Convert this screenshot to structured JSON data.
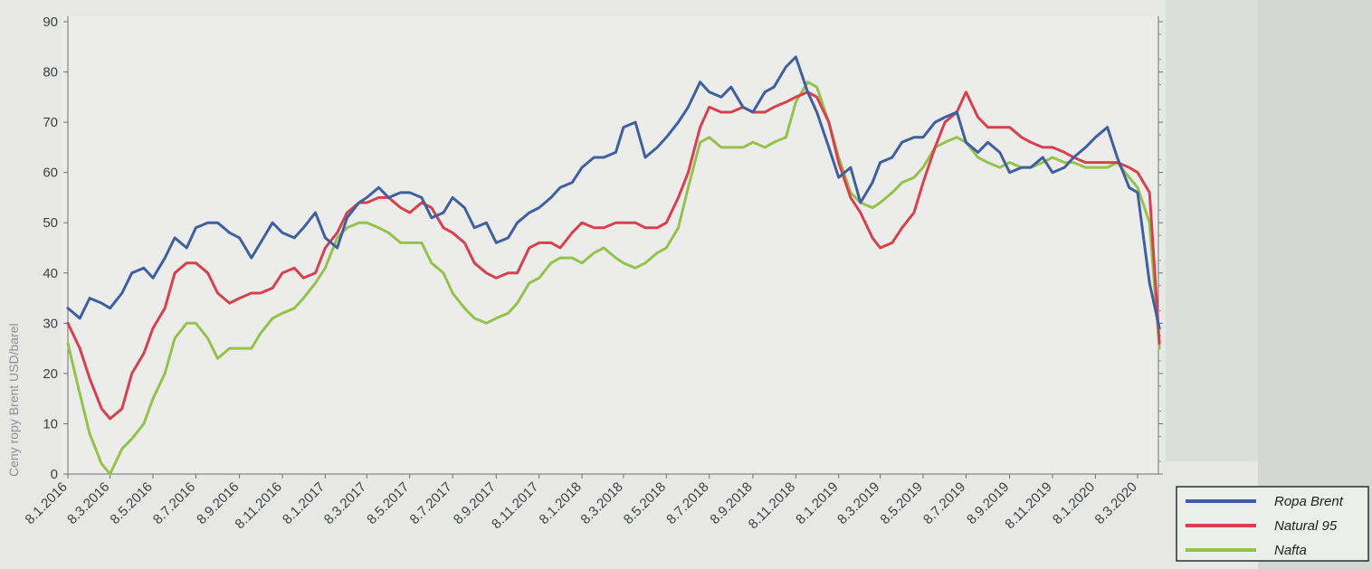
{
  "chart_data": {
    "type": "line",
    "title": "",
    "xlabel": "",
    "ylabel": "Ceny ropy Brent USD/barel",
    "ylim": [
      0,
      90
    ],
    "y_ticks": [
      0,
      10,
      20,
      30,
      40,
      50,
      60,
      70,
      80,
      90
    ],
    "grid": false,
    "legend_position": "bottom-right",
    "x_ticks": [
      "8.1.2016",
      "8.3.2016",
      "8.5.2016",
      "8.7.2016",
      "8.9.2016",
      "8.11.2016",
      "8.1.2017",
      "8.3.2017",
      "8.5.2017",
      "8.7.2017",
      "8.9.2017",
      "8.11.2017",
      "8.1.2018",
      "8.3.2018",
      "8.5.2018",
      "8.7.2018",
      "8.9.2018",
      "8.11.2018",
      "8.1.2019",
      "8.3.2019",
      "8.5.2019",
      "8.7.2019",
      "8.9.2019",
      "8.11.2019",
      "8.1.2020",
      "8.3.2020"
    ],
    "series": [
      {
        "name": "Ropa Brent",
        "color": "#3f5f9e",
        "x": [
          "8.1.2016",
          "25.1.2016",
          "8.2.2016",
          "25.2.2016",
          "8.3.2016",
          "25.3.2016",
          "8.4.2016",
          "25.4.2016",
          "8.5.2016",
          "25.5.2016",
          "8.6.2016",
          "25.6.2016",
          "8.7.2016",
          "25.7.2016",
          "8.8.2016",
          "25.8.2016",
          "8.9.2016",
          "25.9.2016",
          "8.10.2016",
          "25.10.2016",
          "8.11.2016",
          "25.11.2016",
          "8.12.2016",
          "25.12.2016",
          "8.1.2017",
          "25.1.2017",
          "8.2.2017",
          "25.2.2017",
          "8.3.2017",
          "25.3.2017",
          "8.4.2017",
          "25.4.2017",
          "8.5.2017",
          "25.5.2017",
          "8.6.2017",
          "25.6.2017",
          "8.7.2017",
          "25.7.2017",
          "8.8.2017",
          "25.8.2017",
          "8.9.2017",
          "25.9.2017",
          "8.10.2017",
          "25.10.2017",
          "8.11.2017",
          "25.11.2017",
          "8.12.2017",
          "25.12.2017",
          "8.1.2018",
          "25.1.2018",
          "8.2.2018",
          "25.2.2018",
          "8.3.2018",
          "25.3.2018",
          "8.4.2018",
          "25.4.2018",
          "8.5.2018",
          "25.5.2018",
          "8.6.2018",
          "25.6.2018",
          "8.7.2018",
          "25.7.2018",
          "8.8.2018",
          "25.8.2018",
          "8.9.2018",
          "25.9.2018",
          "8.10.2018",
          "25.10.2018",
          "8.11.2018",
          "25.11.2018",
          "8.12.2018",
          "25.12.2018",
          "8.1.2019",
          "25.1.2019",
          "8.2.2019",
          "25.2.2019",
          "8.3.2019",
          "25.3.2019",
          "8.4.2019",
          "25.4.2019",
          "8.5.2019",
          "25.5.2019",
          "8.6.2019",
          "25.6.2019",
          "8.7.2019",
          "25.7.2019",
          "8.8.2019",
          "25.8.2019",
          "8.9.2019",
          "25.9.2019",
          "8.10.2019",
          "25.10.2019",
          "8.11.2019",
          "25.11.2019",
          "8.12.2019",
          "25.12.2019",
          "8.1.2020",
          "25.1.2020",
          "8.2.2020",
          "25.2.2020",
          "8.3.2020",
          "25.3.2020",
          "8.4.2020"
        ],
        "values": [
          33,
          31,
          35,
          34,
          33,
          36,
          40,
          41,
          39,
          43,
          47,
          45,
          49,
          50,
          50,
          48,
          47,
          43,
          46,
          50,
          48,
          47,
          49,
          52,
          47,
          45,
          51,
          54,
          55,
          57,
          55,
          56,
          56,
          55,
          51,
          52,
          55,
          53,
          49,
          50,
          46,
          47,
          50,
          52,
          53,
          55,
          57,
          58,
          61,
          63,
          63,
          64,
          69,
          70,
          63,
          65,
          67,
          70,
          73,
          78,
          76,
          75,
          77,
          73,
          72,
          76,
          77,
          81,
          83,
          76,
          72,
          65,
          59,
          61,
          54,
          58,
          62,
          63,
          66,
          67,
          67,
          70,
          71,
          72,
          66,
          64,
          66,
          64,
          60,
          61,
          61,
          63,
          60,
          61,
          63,
          65,
          67,
          69,
          63,
          57,
          56,
          38,
          29
        ]
      },
      {
        "name": "Natural 95",
        "color": "#d6414e",
        "x": [
          "8.1.2016",
          "25.1.2016",
          "8.2.2016",
          "25.2.2016",
          "8.3.2016",
          "25.3.2016",
          "8.4.2016",
          "25.4.2016",
          "8.5.2016",
          "25.5.2016",
          "8.6.2016",
          "25.6.2016",
          "8.7.2016",
          "25.7.2016",
          "8.8.2016",
          "25.8.2016",
          "8.9.2016",
          "25.9.2016",
          "8.10.2016",
          "25.10.2016",
          "8.11.2016",
          "25.11.2016",
          "8.12.2016",
          "25.12.2016",
          "8.1.2017",
          "25.1.2017",
          "8.2.2017",
          "25.2.2017",
          "8.3.2017",
          "25.3.2017",
          "8.4.2017",
          "25.4.2017",
          "8.5.2017",
          "25.5.2017",
          "8.6.2017",
          "25.6.2017",
          "8.7.2017",
          "25.7.2017",
          "8.8.2017",
          "25.8.2017",
          "8.9.2017",
          "25.9.2017",
          "8.10.2017",
          "25.10.2017",
          "8.11.2017",
          "25.11.2017",
          "8.12.2017",
          "25.12.2017",
          "8.1.2018",
          "25.1.2018",
          "8.2.2018",
          "25.2.2018",
          "8.3.2018",
          "25.3.2018",
          "8.4.2018",
          "25.4.2018",
          "8.5.2018",
          "25.5.2018",
          "8.6.2018",
          "25.6.2018",
          "8.7.2018",
          "25.7.2018",
          "8.8.2018",
          "25.8.2018",
          "8.9.2018",
          "25.9.2018",
          "8.10.2018",
          "25.10.2018",
          "8.11.2018",
          "25.11.2018",
          "8.12.2018",
          "25.12.2018",
          "8.1.2019",
          "25.1.2019",
          "8.2.2019",
          "25.2.2019",
          "8.3.2019",
          "25.3.2019",
          "8.4.2019",
          "25.4.2019",
          "8.5.2019",
          "25.5.2019",
          "8.6.2019",
          "25.6.2019",
          "8.7.2019",
          "25.7.2019",
          "8.8.2019",
          "25.8.2019",
          "8.9.2019",
          "25.9.2019",
          "8.10.2019",
          "25.10.2019",
          "8.11.2019",
          "25.11.2019",
          "8.12.2019",
          "25.12.2019",
          "8.1.2020",
          "25.1.2020",
          "8.2.2020",
          "25.2.2020",
          "8.3.2020",
          "25.3.2020",
          "8.4.2020"
        ],
        "values": [
          30,
          25,
          19,
          13,
          11,
          13,
          20,
          24,
          29,
          33,
          40,
          42,
          42,
          40,
          36,
          34,
          35,
          36,
          36,
          37,
          40,
          41,
          39,
          40,
          45,
          48,
          52,
          54,
          54,
          55,
          55,
          53,
          52,
          54,
          53,
          49,
          48,
          46,
          42,
          40,
          39,
          40,
          40,
          45,
          46,
          46,
          45,
          48,
          50,
          49,
          49,
          50,
          50,
          50,
          49,
          49,
          50,
          55,
          60,
          69,
          73,
          72,
          72,
          73,
          72,
          72,
          73,
          74,
          75,
          76,
          75,
          70,
          62,
          55,
          52,
          47,
          45,
          46,
          49,
          52,
          58,
          65,
          70,
          72,
          76,
          71,
          69,
          69,
          69,
          67,
          66,
          65,
          65,
          64,
          63,
          62,
          62,
          62,
          62,
          61,
          60,
          56,
          26
        ]
      },
      {
        "name": "Nafta",
        "color": "#94c24a",
        "x": [
          "8.1.2016",
          "25.1.2016",
          "8.2.2016",
          "25.2.2016",
          "8.3.2016",
          "25.3.2016",
          "8.4.2016",
          "25.4.2016",
          "8.5.2016",
          "25.5.2016",
          "8.6.2016",
          "25.6.2016",
          "8.7.2016",
          "25.7.2016",
          "8.8.2016",
          "25.8.2016",
          "8.9.2016",
          "25.9.2016",
          "8.10.2016",
          "25.10.2016",
          "8.11.2016",
          "25.11.2016",
          "8.12.2016",
          "25.12.2016",
          "8.1.2017",
          "25.1.2017",
          "8.2.2017",
          "25.2.2017",
          "8.3.2017",
          "25.3.2017",
          "8.4.2017",
          "25.4.2017",
          "8.5.2017",
          "25.5.2017",
          "8.6.2017",
          "25.6.2017",
          "8.7.2017",
          "25.7.2017",
          "8.8.2017",
          "25.8.2017",
          "8.9.2017",
          "25.9.2017",
          "8.10.2017",
          "25.10.2017",
          "8.11.2017",
          "25.11.2017",
          "8.12.2017",
          "25.12.2017",
          "8.1.2018",
          "25.1.2018",
          "8.2.2018",
          "25.2.2018",
          "8.3.2018",
          "25.3.2018",
          "8.4.2018",
          "25.4.2018",
          "8.5.2018",
          "25.5.2018",
          "8.6.2018",
          "25.6.2018",
          "8.7.2018",
          "25.7.2018",
          "8.8.2018",
          "25.8.2018",
          "8.9.2018",
          "25.9.2018",
          "8.10.2018",
          "25.10.2018",
          "8.11.2018",
          "25.11.2018",
          "8.12.2018",
          "25.12.2018",
          "8.1.2019",
          "25.1.2019",
          "8.2.2019",
          "25.2.2019",
          "8.3.2019",
          "25.3.2019",
          "8.4.2019",
          "25.4.2019",
          "8.5.2019",
          "25.5.2019",
          "8.6.2019",
          "25.6.2019",
          "8.7.2019",
          "25.7.2019",
          "8.8.2019",
          "25.8.2019",
          "8.9.2019",
          "25.9.2019",
          "8.10.2019",
          "25.10.2019",
          "8.11.2019",
          "25.11.2019",
          "8.12.2019",
          "25.12.2019",
          "8.1.2020",
          "25.1.2020",
          "8.2.2020",
          "25.2.2020",
          "8.3.2020",
          "25.3.2020",
          "8.4.2020"
        ],
        "values": [
          26,
          16,
          8,
          2,
          0,
          5,
          7,
          10,
          15,
          20,
          27,
          30,
          30,
          27,
          23,
          25,
          25,
          25,
          28,
          31,
          32,
          33,
          35,
          38,
          41,
          47,
          49,
          50,
          50,
          49,
          48,
          46,
          46,
          46,
          42,
          40,
          36,
          33,
          31,
          30,
          31,
          32,
          34,
          38,
          39,
          42,
          43,
          43,
          42,
          44,
          45,
          43,
          42,
          41,
          42,
          44,
          45,
          49,
          57,
          66,
          67,
          65,
          65,
          65,
          66,
          65,
          66,
          67,
          74,
          78,
          77,
          70,
          63,
          56,
          54,
          53,
          54,
          56,
          58,
          59,
          61,
          65,
          66,
          67,
          66,
          63,
          62,
          61,
          62,
          61,
          61,
          62,
          63,
          62,
          62,
          61,
          61,
          61,
          62,
          59,
          57,
          50,
          25
        ]
      }
    ]
  }
}
